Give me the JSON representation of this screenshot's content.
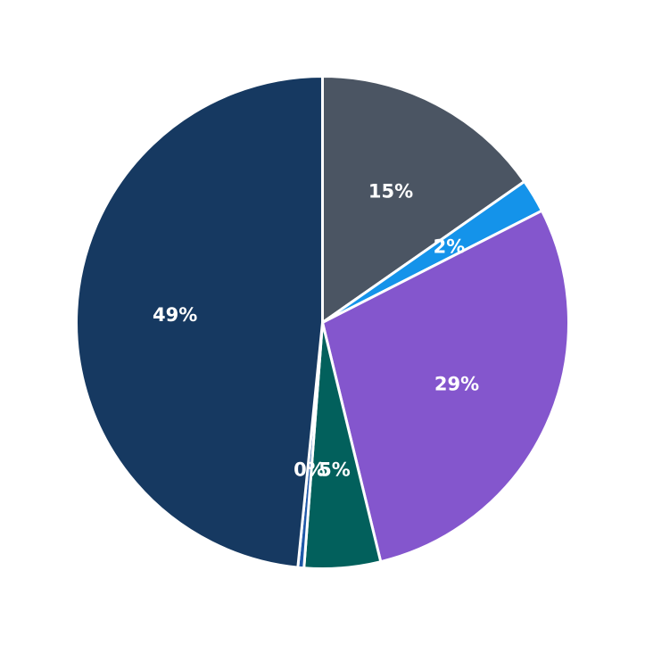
{
  "chart_data": {
    "type": "pie",
    "title": "",
    "start_angle_deg": 90,
    "direction": "clockwise",
    "legend": "none",
    "slices": [
      {
        "value": 15.3,
        "label": "15%",
        "color": "#4b5563"
      },
      {
        "value": 2.2,
        "label": "2%",
        "color": "#1493ea"
      },
      {
        "value": 28.7,
        "label": "29%",
        "color": "#8456cd"
      },
      {
        "value": 5.0,
        "label": "5%",
        "color": "#02605c"
      },
      {
        "value": 0.4,
        "label": "0%",
        "color": "#1f58a8"
      },
      {
        "value": 48.4,
        "label": "49%",
        "color": "#163961"
      }
    ]
  }
}
